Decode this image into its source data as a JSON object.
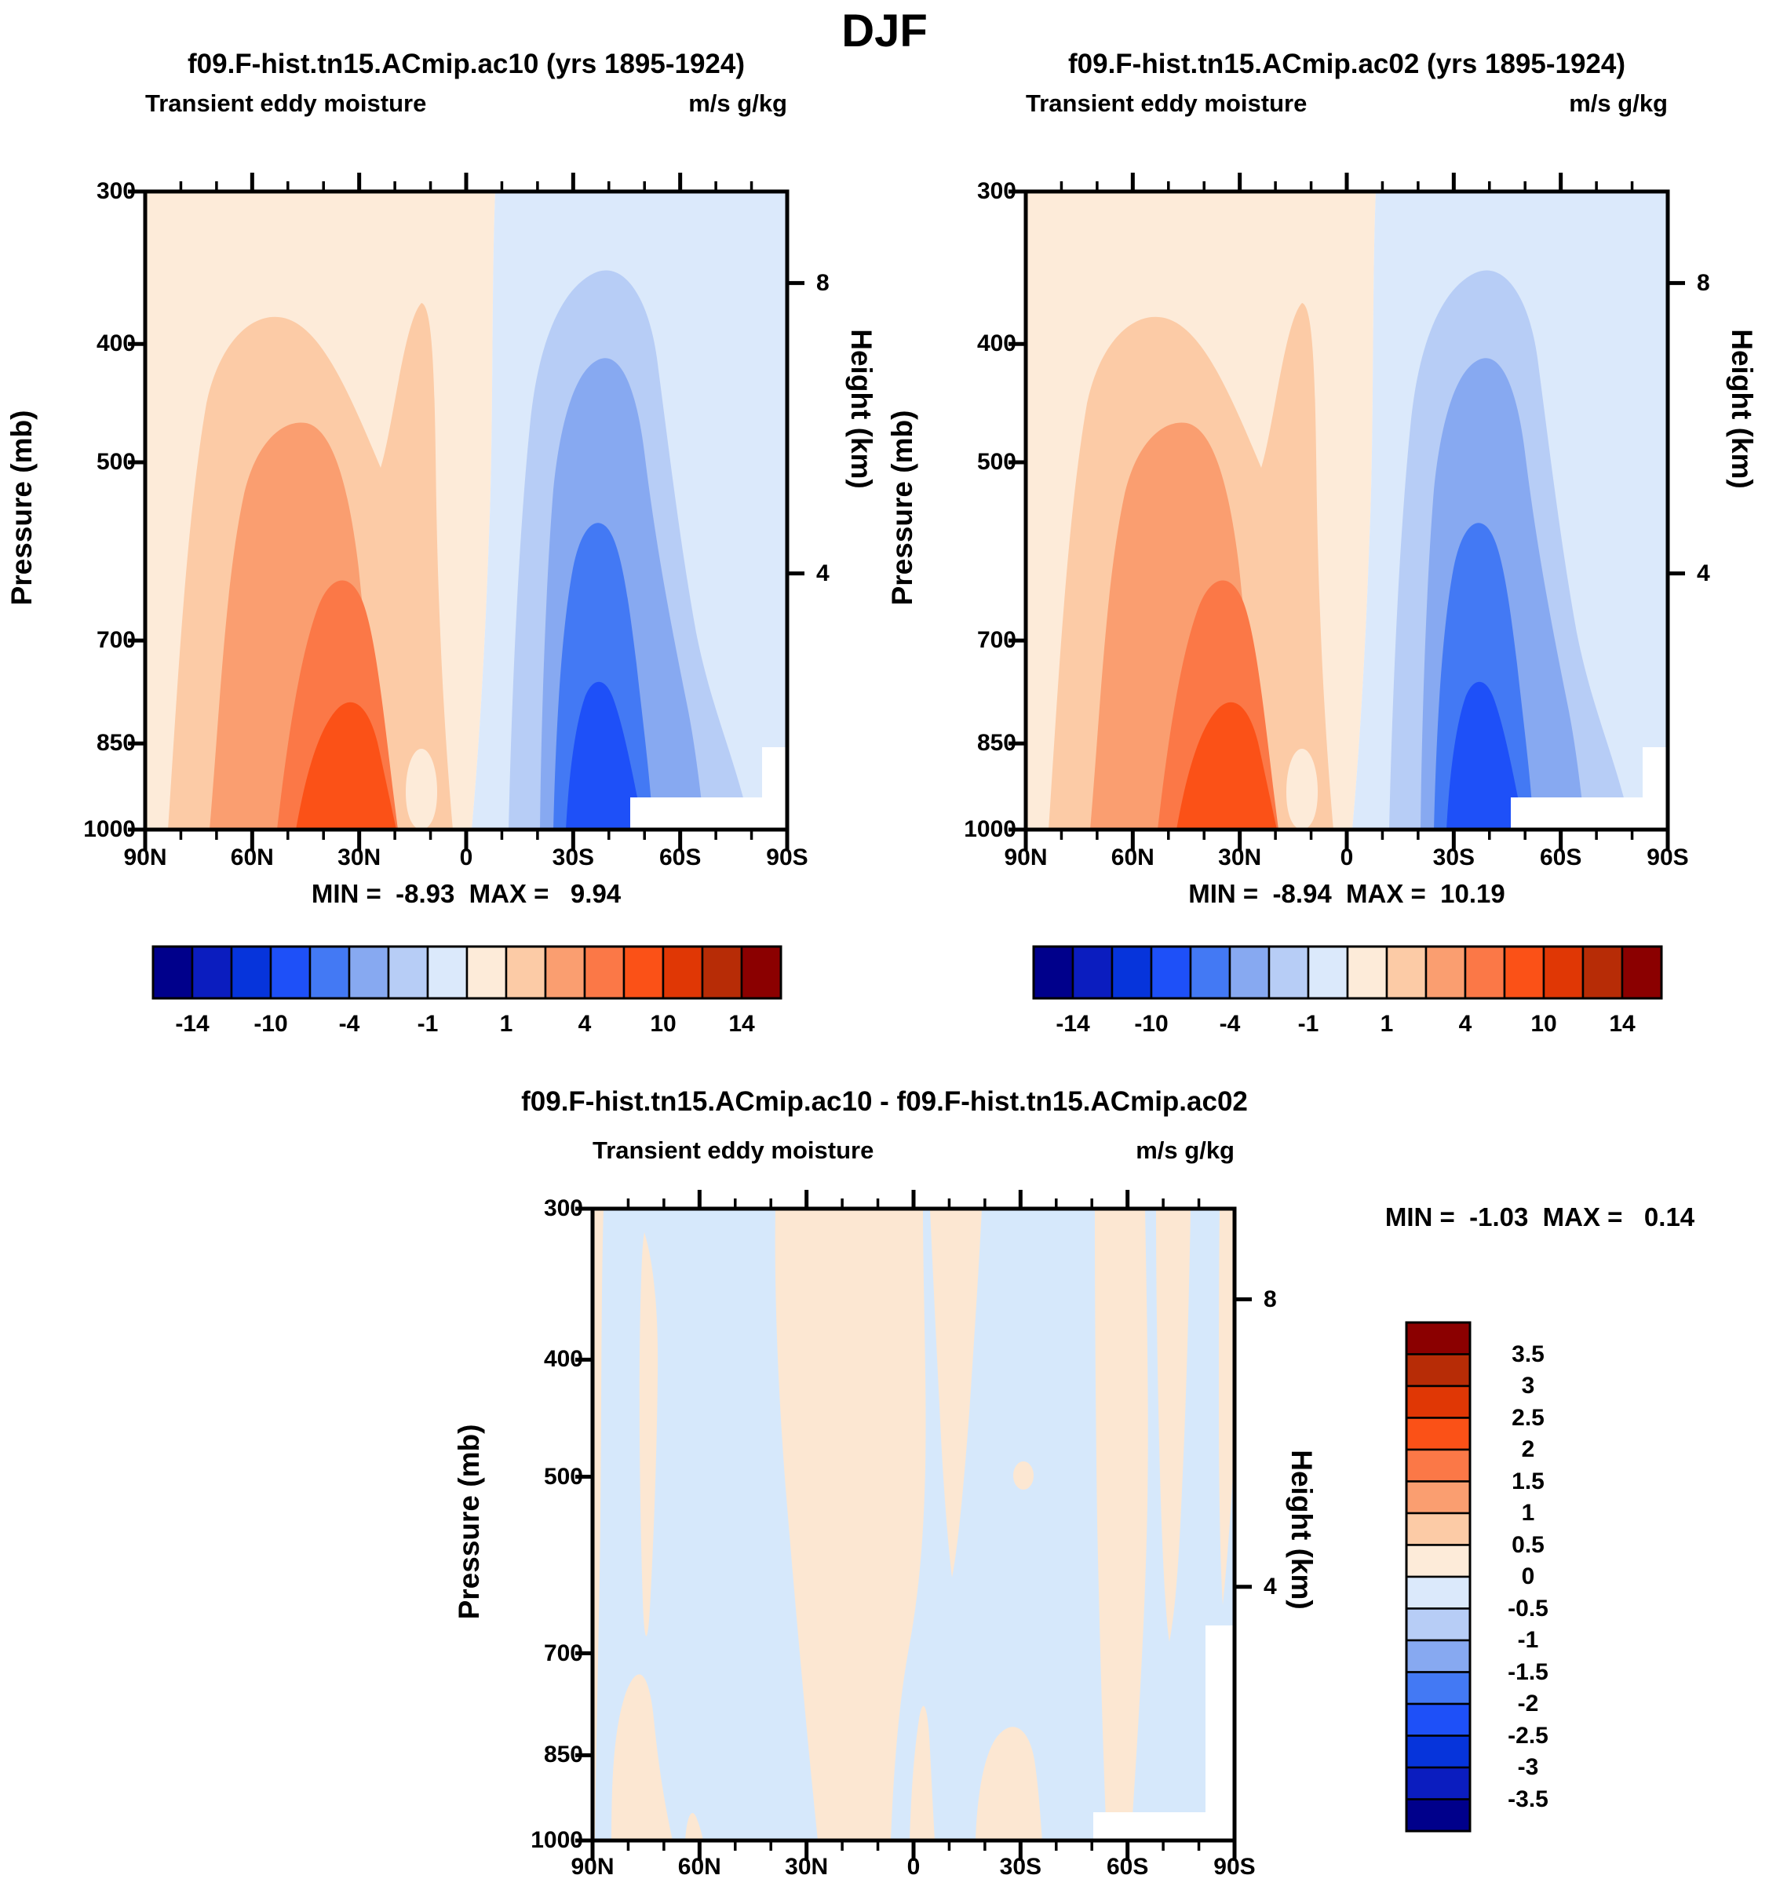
{
  "title": "DJF",
  "field_label": "Transient eddy moisture",
  "units_label": "m/s g/kg",
  "axes": {
    "pressure_label": "Pressure (mb)",
    "height_label": "Height (km)",
    "pressure_ticks": [
      "300",
      "400",
      "500",
      "700",
      "850",
      "1000"
    ],
    "pressure_values": [
      300,
      400,
      500,
      700,
      850,
      1000
    ],
    "height_ticks": [
      "8",
      "4"
    ],
    "height_fractions": [
      0.1435,
      0.5985
    ],
    "lat_ticks": [
      "90N",
      "60N",
      "30N",
      "0",
      "30S",
      "60S",
      "90S"
    ]
  },
  "panels": [
    {
      "id": "ac10",
      "title": "f09.F-hist.tn15.ACmip.ac10 (yrs 1895-1924)",
      "minmax_text": "MIN =  -8.93  MAX =   9.94",
      "min": -8.93,
      "max": 9.94
    },
    {
      "id": "ac02",
      "title": "f09.F-hist.tn15.ACmip.ac02 (yrs 1895-1924)",
      "minmax_text": "MIN =  -8.94  MAX =  10.19",
      "min": -8.94,
      "max": 10.19
    },
    {
      "id": "diff",
      "title": "f09.F-hist.tn15.ACmip.ac10 - f09.F-hist.tn15.ACmip.ac02",
      "minmax_text": "MIN =  -1.03  MAX =   0.14",
      "min": -1.03,
      "max": 0.14
    }
  ],
  "colorbar": {
    "labels": [
      "-14",
      "-10",
      "-4",
      "-1",
      "1",
      "4",
      "10",
      "14"
    ],
    "levels": [
      -14,
      -12,
      -10,
      -7,
      -4,
      -2,
      -1,
      0,
      1,
      2,
      4,
      7,
      10,
      12,
      14
    ],
    "colors": [
      "#00008B",
      "#0B1DBF",
      "#0634DB",
      "#1E50F8",
      "#4379F4",
      "#87A9F1",
      "#B7CDF6",
      "#DBE9FB",
      "#FDEBD9",
      "#FCCBA6",
      "#FA9E70",
      "#FB7847",
      "#FB5117",
      "#E03705",
      "#B72C06",
      "#8B0000"
    ]
  },
  "diff_colorbar": {
    "labels": [
      "3.5",
      "3",
      "2.5",
      "2",
      "1.5",
      "1",
      "0.5",
      "0",
      "-0.5",
      "-1",
      "-1.5",
      "-2",
      "-2.5",
      "-3",
      "-3.5"
    ],
    "levels": [
      -3.5,
      -3,
      -2.5,
      -2,
      -1.5,
      -1,
      -0.5,
      0,
      0.5,
      1,
      1.5,
      2,
      2.5,
      3,
      3.5
    ],
    "positive_fill": "#FCE7D2",
    "negative_fill": "#D6E8FB"
  },
  "chart_data": {
    "type": "heatmap",
    "subtype": "filled-contour latitude-pressure cross sections",
    "season": "DJF",
    "variable": "Transient eddy moisture",
    "units": "m/s g/kg",
    "x_axis": {
      "label": "Latitude",
      "ticks": [
        "90N",
        "60N",
        "30N",
        "0",
        "30S",
        "60S",
        "90S"
      ],
      "range_deg": [
        90,
        -90
      ]
    },
    "y_axis_left": {
      "label": "Pressure (mb)",
      "ticks": [
        300,
        400,
        500,
        700,
        850,
        1000
      ],
      "scale": "log",
      "inverted": true
    },
    "y_axis_right": {
      "label": "Height (km)",
      "ticks": [
        8,
        4
      ]
    },
    "panels": [
      {
        "title": "f09.F-hist.tn15.ACmip.ac10 (yrs 1895-1924)",
        "min": -8.93,
        "max": 9.94,
        "contour_levels": [
          -14,
          -12,
          -10,
          -7,
          -4,
          -2,
          -1,
          0,
          1,
          2,
          4,
          7,
          10,
          12,
          14
        ],
        "description": "Positive (orange/red) cell over NH 90N-0 peaking ~+9.9 near 35N/950mb; negative (blue) cell over SH 0-90S peaking ~-8.9 near 45S/900mb; white terrain cutout below ~960mb from ~55S to 90S"
      },
      {
        "title": "f09.F-hist.tn15.ACmip.ac02 (yrs 1895-1924)",
        "min": -8.94,
        "max": 10.19,
        "contour_levels": [
          -14,
          -12,
          -10,
          -7,
          -4,
          -2,
          -1,
          0,
          1,
          2,
          4,
          7,
          10,
          12,
          14
        ],
        "description": "Nearly identical pattern to ac10 panel"
      },
      {
        "title": "f09.F-hist.tn15.ACmip.ac10 - f09.F-hist.tn15.ACmip.ac02",
        "min": -1.03,
        "max": 0.14,
        "contour_levels": [
          -3.5,
          -3,
          -2.5,
          -2,
          -1.5,
          -1,
          -0.5,
          0,
          0.5,
          1,
          1.5,
          2,
          2.5,
          3,
          3.5
        ],
        "description": "Difference field: alternating weak vertical bands between -0.5 and +0.5 over the full section"
      }
    ],
    "legend_position": "horizontal colorbars under top panels; vertical colorbar right of bottom panel",
    "grid": false
  }
}
